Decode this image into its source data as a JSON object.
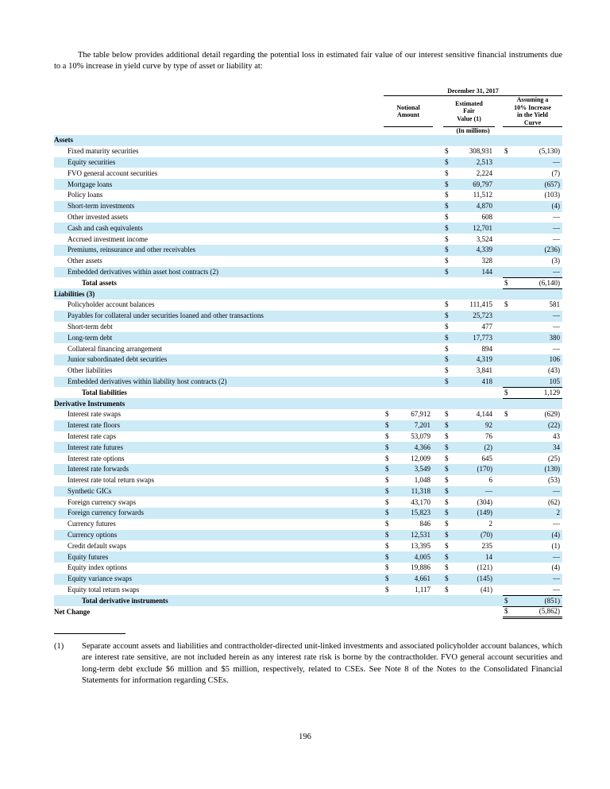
{
  "colors": {
    "band": "#cdeaf7",
    "rule": "#000000"
  },
  "intro": "The table below provides additional detail regarding the potential loss in estimated fair value of our interest sensitive financial instruments due to a 10% increase in yield curve by type of asset or liability at:",
  "table": {
    "header": {
      "date": "December 31, 2017",
      "notional": "Notional\nAmount",
      "fair_value": "Estimated\nFair\nValue (1)",
      "yield_increase": "Assuming a\n10% Increase\nin the Yield\nCurve",
      "units": "(In millions)"
    },
    "sections": [
      {
        "title": "Assets",
        "rows": [
          [
            "Fixed maturity securities",
            "",
            "",
            "$",
            "308,931",
            "$",
            "(5,130)"
          ],
          [
            "Equity securities",
            "",
            "",
            "$",
            "2,513",
            "",
            "—"
          ],
          [
            "FVO general account securities",
            "",
            "",
            "$",
            "2,224",
            "",
            "(7)"
          ],
          [
            "Mortgage loans",
            "",
            "",
            "$",
            "69,797",
            "",
            "(657)"
          ],
          [
            "Policy loans",
            "",
            "",
            "$",
            "11,512",
            "",
            "(103)"
          ],
          [
            "Short-term investments",
            "",
            "",
            "$",
            "4,870",
            "",
            "(4)"
          ],
          [
            "Other invested assets",
            "",
            "",
            "$",
            "608",
            "",
            "—"
          ],
          [
            "Cash and cash equivalents",
            "",
            "",
            "$",
            "12,701",
            "",
            "—"
          ],
          [
            "Accrued investment income",
            "",
            "",
            "$",
            "3,524",
            "",
            "—"
          ],
          [
            "Premiums, reinsurance and other receivables",
            "",
            "",
            "$",
            "4,339",
            "",
            "(236)"
          ],
          [
            "Other assets",
            "",
            "",
            "$",
            "328",
            "",
            "(3)"
          ],
          [
            "Embedded derivatives within asset host contracts (2)",
            "",
            "",
            "$",
            "144",
            "",
            "—"
          ]
        ],
        "total": {
          "label": "Total assets",
          "dollar": "$",
          "value": "(6,140)"
        }
      },
      {
        "title": "Liabilities (3)",
        "rows": [
          [
            "Policyholder account balances",
            "",
            "",
            "$",
            "111,415",
            "$",
            "581"
          ],
          [
            "Payables for collateral under securities loaned and other transactions",
            "",
            "",
            "$",
            "25,723",
            "",
            "—"
          ],
          [
            "Short-term debt",
            "",
            "",
            "$",
            "477",
            "",
            "—"
          ],
          [
            "Long-term debt",
            "",
            "",
            "$",
            "17,773",
            "",
            "380"
          ],
          [
            "Collateral financing arrangement",
            "",
            "",
            "$",
            "894",
            "",
            "—"
          ],
          [
            "Junior subordinated debt securities",
            "",
            "",
            "$",
            "4,319",
            "",
            "106"
          ],
          [
            "Other liabilities",
            "",
            "",
            "$",
            "3,841",
            "",
            "(43)"
          ],
          [
            "Embedded derivatives within liability host contracts (2)",
            "",
            "",
            "$",
            "418",
            "",
            "105"
          ]
        ],
        "total": {
          "label": "Total liabilities",
          "dollar": "$",
          "value": "1,129"
        }
      },
      {
        "title": "Derivative Instruments",
        "rows": [
          [
            "Interest rate swaps",
            "$",
            "67,912",
            "$",
            "4,144",
            "$",
            "(629)"
          ],
          [
            "Interest rate floors",
            "$",
            "7,201",
            "$",
            "92",
            "",
            "(22)"
          ],
          [
            "Interest rate caps",
            "$",
            "53,079",
            "$",
            "76",
            "",
            "43"
          ],
          [
            "Interest rate futures",
            "$",
            "4,366",
            "$",
            "(2)",
            "",
            "34"
          ],
          [
            "Interest rate options",
            "$",
            "12,009",
            "$",
            "645",
            "",
            "(25)"
          ],
          [
            "Interest rate forwards",
            "$",
            "3,549",
            "$",
            "(170)",
            "",
            "(130)"
          ],
          [
            "Interest rate total return swaps",
            "$",
            "1,048",
            "$",
            "6",
            "",
            "(53)"
          ],
          [
            "Synthetic GICs",
            "$",
            "11,318",
            "$",
            "—",
            "",
            "—"
          ],
          [
            "Foreign currency swaps",
            "$",
            "43,170",
            "$",
            "(304)",
            "",
            "(62)"
          ],
          [
            "Foreign currency forwards",
            "$",
            "15,823",
            "$",
            "(149)",
            "",
            "2"
          ],
          [
            "Currency futures",
            "$",
            "846",
            "$",
            "2",
            "",
            "—"
          ],
          [
            "Currency options",
            "$",
            "12,531",
            "$",
            "(70)",
            "",
            "(4)"
          ],
          [
            "Credit default swaps",
            "$",
            "13,395",
            "$",
            "235",
            "",
            "(1)"
          ],
          [
            "Equity futures",
            "$",
            "4,005",
            "$",
            "14",
            "",
            "—"
          ],
          [
            "Equity index options",
            "$",
            "19,886",
            "$",
            "(121)",
            "",
            "(4)"
          ],
          [
            "Equity variance swaps",
            "$",
            "4,661",
            "$",
            "(145)",
            "",
            "—"
          ],
          [
            "Equity total return swaps",
            "$",
            "1,117",
            "$",
            "(41)",
            "",
            "—"
          ]
        ],
        "total": {
          "label": "Total derivative instruments",
          "dollar": "$",
          "value": "(851)"
        }
      }
    ],
    "net_change": {
      "label": "Net Change",
      "dollar": "$",
      "value": "(5,862)"
    }
  },
  "footnote": {
    "marker": "(1)",
    "text": "Separate account assets and liabilities and contractholder-directed unit-linked investments and associated policyholder account balances, which are interest rate sensitive, are not included herein as any interest rate risk is borne by the contractholder. FVO general account securities and long-term debt exclude $6 million and $5 million, respectively, related to CSEs. See Note 8 of the Notes to the Consolidated Financial Statements for information regarding CSEs."
  },
  "page_number": "196"
}
